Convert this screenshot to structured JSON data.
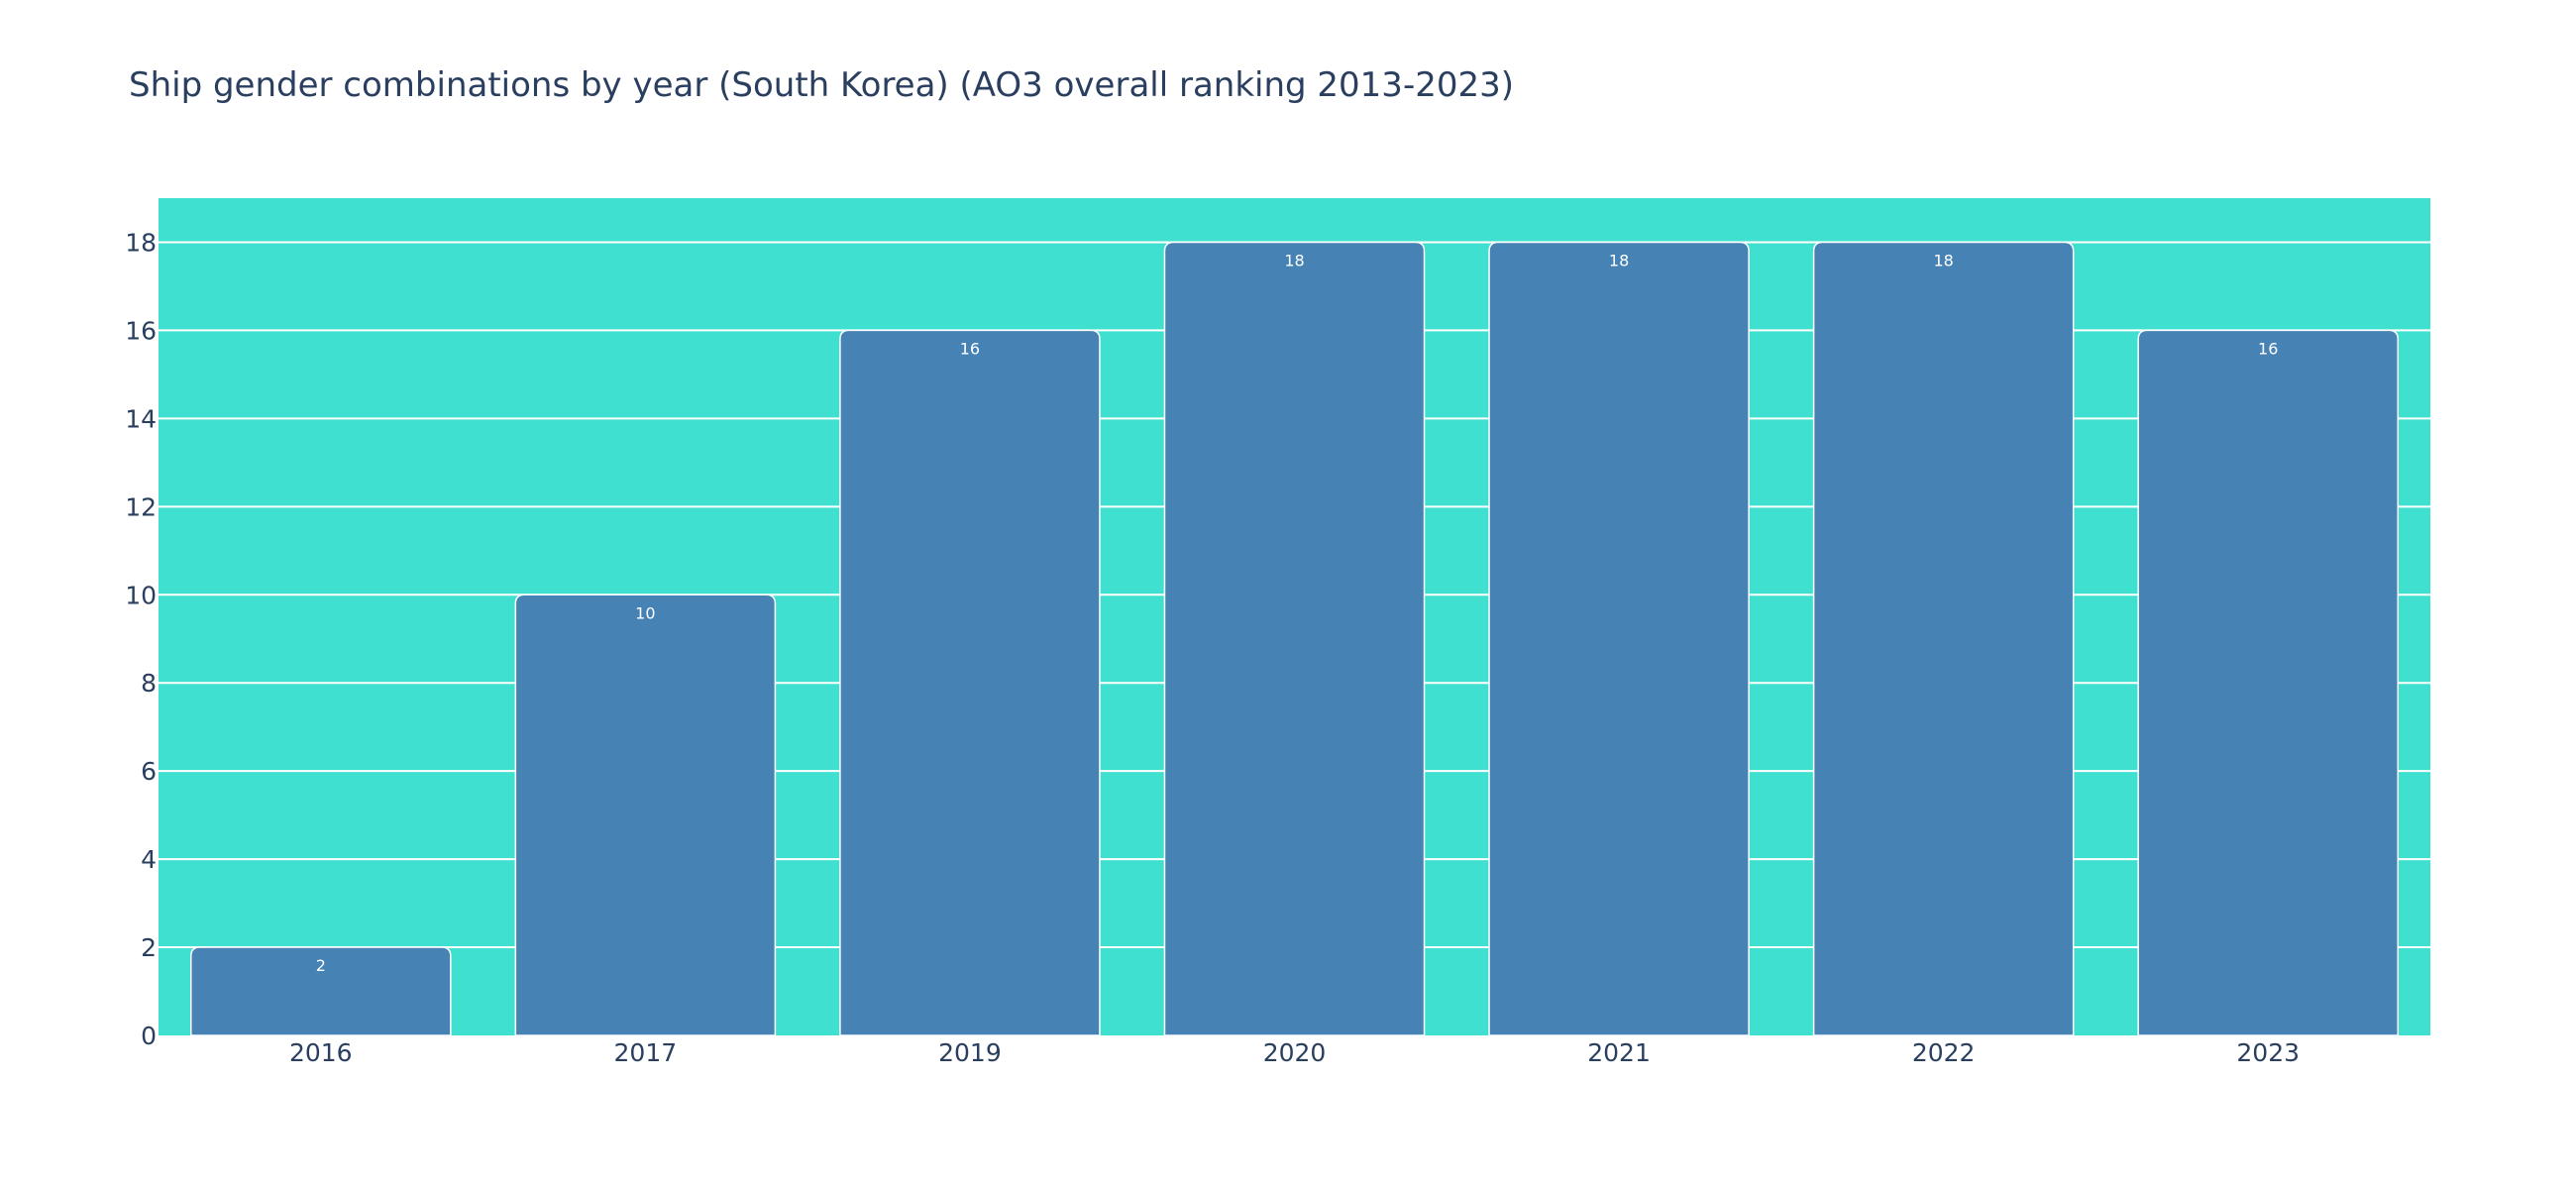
{
  "chart_data": {
    "type": "bar",
    "title": "Ship gender combinations by year (South Korea) (AO3 overall ranking 2013-2023)",
    "xlabel": "",
    "ylabel": "",
    "categories": [
      "2016",
      "2017",
      "2019",
      "2020",
      "2021",
      "2022",
      "2023"
    ],
    "values": [
      2,
      10,
      16,
      18,
      18,
      18,
      16
    ],
    "ylim": [
      0,
      19
    ],
    "y_ticks": [
      0,
      2,
      4,
      6,
      8,
      10,
      12,
      14,
      16,
      18
    ],
    "grid": true,
    "legend": "none",
    "data_labels": true
  },
  "colors": {
    "plot_background": "#40e0d0",
    "bar_fill": "#4682b4",
    "bar_outline": "#ffffff",
    "grid": "#ffffff",
    "text": "#2a3f5f",
    "bar_label": "#ffffff"
  }
}
